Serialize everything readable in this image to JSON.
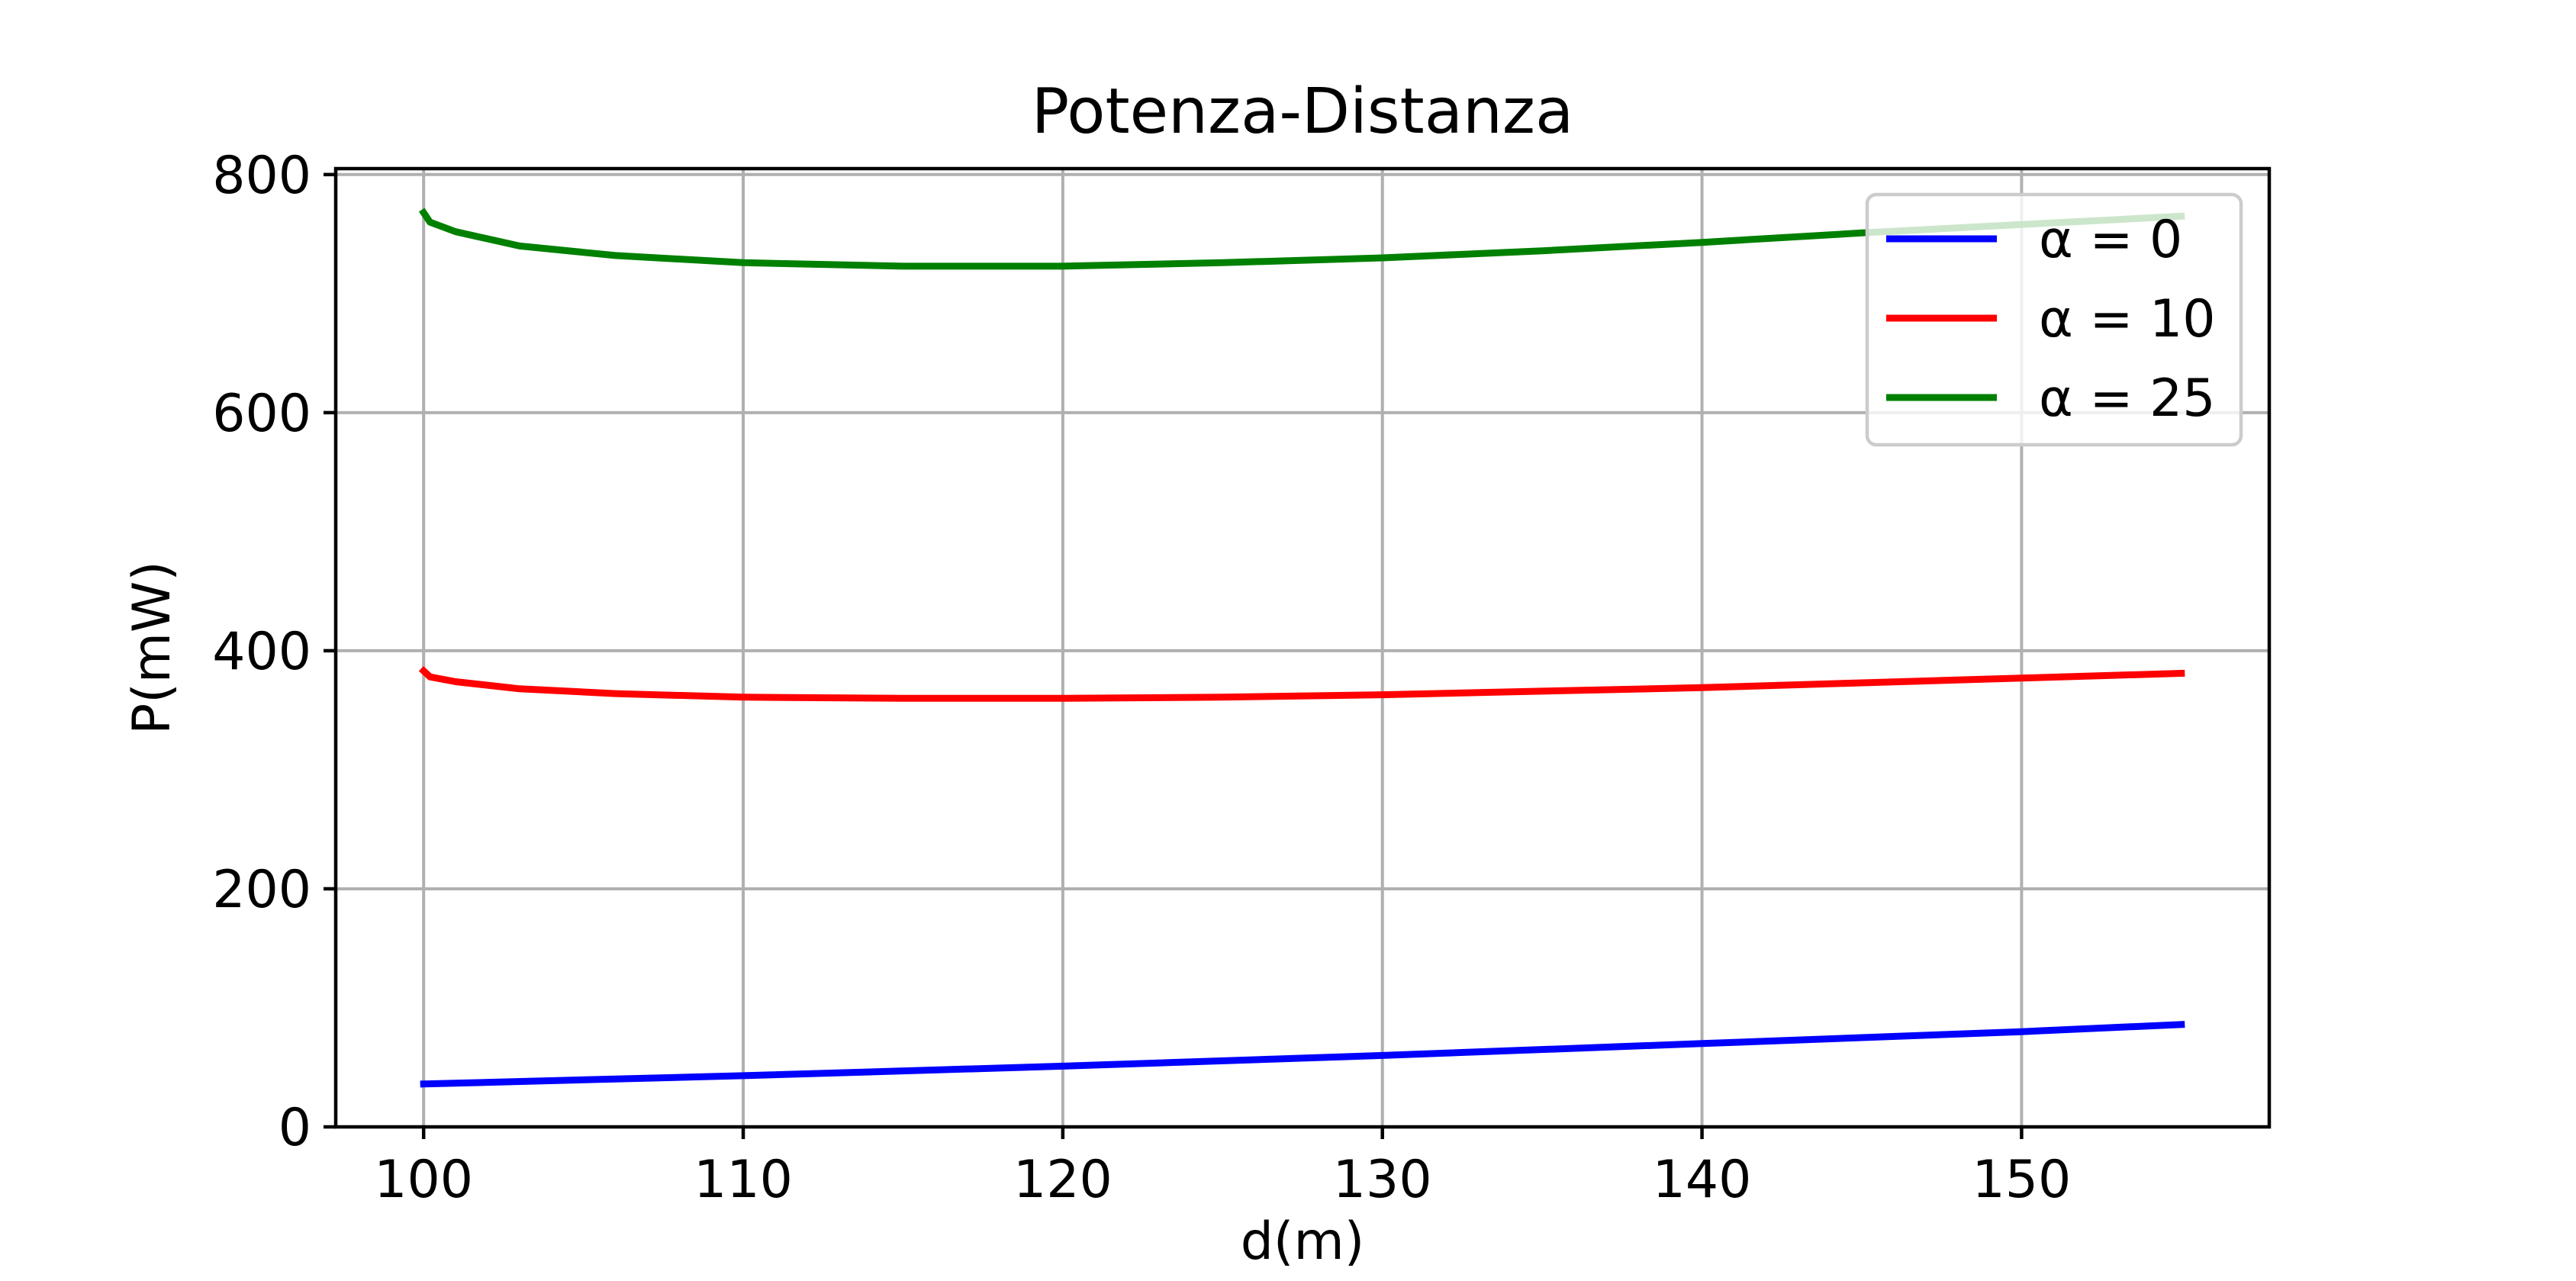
{
  "chart_data": {
    "type": "line",
    "title": "Potenza-Distanza",
    "xlabel": "d(m)",
    "ylabel": "P(mW)",
    "xlim": [
      97.25,
      157.75
    ],
    "ylim": [
      0,
      805
    ],
    "x_ticks": [
      100,
      110,
      120,
      130,
      140,
      150
    ],
    "y_ticks": [
      0,
      200,
      400,
      600,
      800
    ],
    "grid": true,
    "legend_position": "top-right",
    "series": [
      {
        "name": "α = 0",
        "legend_label": "α = 0",
        "color": "#0000ff",
        "x": [
          100,
          110,
          120,
          130,
          140,
          150,
          155
        ],
        "y": [
          36,
          43,
          51,
          60,
          70,
          80,
          86
        ]
      },
      {
        "name": "α = 10",
        "legend_label": "α = 10",
        "color": "#ff0000",
        "x": [
          100,
          100.2,
          101,
          103,
          106,
          110,
          115,
          120,
          125,
          130,
          135,
          140,
          145,
          150,
          155
        ],
        "y": [
          383,
          378,
          374,
          368,
          364,
          361,
          360,
          360,
          361,
          363,
          366,
          369,
          373,
          377,
          381
        ]
      },
      {
        "name": "α = 25",
        "legend_label": "α = 25",
        "color": "#008000",
        "x": [
          100,
          100.2,
          101,
          103,
          106,
          110,
          115,
          120,
          125,
          130,
          135,
          140,
          145,
          150,
          155
        ],
        "y": [
          768,
          760,
          752,
          740,
          732,
          726,
          723,
          723,
          726,
          730,
          736,
          743,
          751,
          758,
          765
        ]
      }
    ]
  }
}
